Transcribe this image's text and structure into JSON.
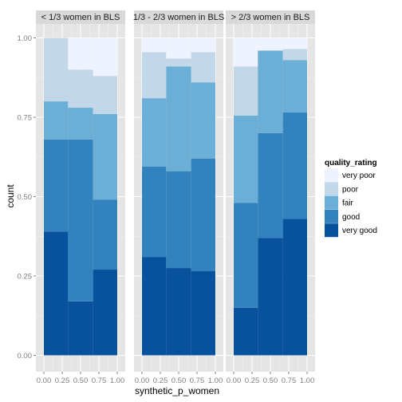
{
  "chart_data": {
    "type": "bar",
    "stacked": true,
    "xlabel": "synthetic_p_women",
    "ylabel": "count",
    "ylim": [
      0,
      1
    ],
    "xlim": [
      0,
      1
    ],
    "x_ticks": [
      "0.00",
      "0.25",
      "0.50",
      "0.75",
      "1.00"
    ],
    "y_ticks": [
      "0.00",
      "0.25",
      "0.50",
      "0.75",
      "1.00"
    ],
    "grid": true,
    "legend_position": "right",
    "legend": {
      "title": "quality_rating",
      "items": [
        {
          "label": "very poor",
          "color": "#EFF3FF"
        },
        {
          "label": "poor",
          "color": "#C2D7E8"
        },
        {
          "label": "fair",
          "color": "#6BAED6"
        },
        {
          "label": "good",
          "color": "#3182BD"
        },
        {
          "label": "very good",
          "color": "#08519C"
        }
      ]
    },
    "bins": [
      {
        "x_start": 0.0,
        "x_end": 0.33
      },
      {
        "x_start": 0.33,
        "x_end": 0.67
      },
      {
        "x_start": 0.67,
        "x_end": 1.0
      }
    ],
    "panels": [
      {
        "title": "< 1/3 women in BLS",
        "stacks": [
          {
            "very good": 0.39,
            "good": 0.29,
            "fair": 0.12,
            "poor": 0.2,
            "very poor": 0.0
          },
          {
            "very good": 0.17,
            "good": 0.51,
            "fair": 0.1,
            "poor": 0.12,
            "very poor": 0.1
          },
          {
            "very good": 0.27,
            "good": 0.22,
            "fair": 0.27,
            "poor": 0.12,
            "very poor": 0.12
          }
        ]
      },
      {
        "title": "1/3 - 2/3 women in BLS",
        "stacks": [
          {
            "very good": 0.31,
            "good": 0.285,
            "fair": 0.215,
            "poor": 0.145,
            "very poor": 0.045
          },
          {
            "very good": 0.275,
            "good": 0.305,
            "fair": 0.33,
            "poor": 0.025,
            "very poor": 0.065
          },
          {
            "very good": 0.265,
            "good": 0.355,
            "fair": 0.24,
            "poor": 0.095,
            "very poor": 0.045
          }
        ]
      },
      {
        "title": "> 2/3 women in BLS",
        "stacks": [
          {
            "very good": 0.15,
            "good": 0.33,
            "fair": 0.275,
            "poor": 0.155,
            "very poor": 0.09
          },
          {
            "very good": 0.37,
            "good": 0.33,
            "fair": 0.26,
            "poor": 0.0,
            "very poor": 0.04
          },
          {
            "very good": 0.43,
            "good": 0.335,
            "fair": 0.165,
            "poor": 0.035,
            "very poor": 0.035
          }
        ]
      }
    ]
  }
}
